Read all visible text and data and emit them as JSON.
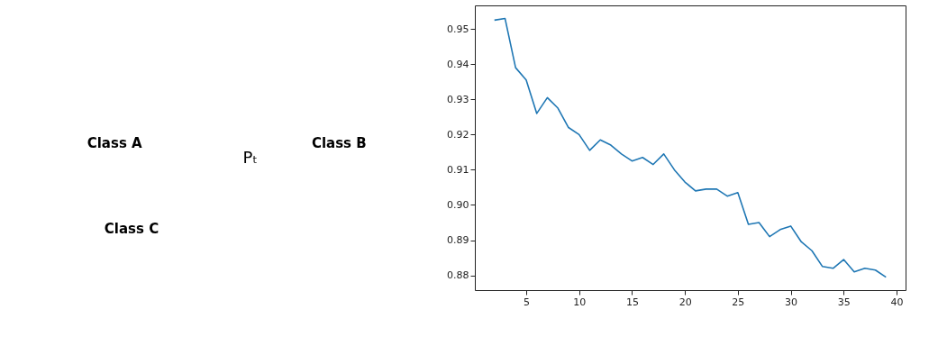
{
  "chart_data": [
    {
      "type": "other",
      "annotations": [
        "Class A",
        "Class B",
        "Class C",
        "Pₜ"
      ]
    },
    {
      "type": "line",
      "x": [
        2,
        3,
        4,
        5,
        6,
        7,
        8,
        9,
        10,
        11,
        12,
        13,
        14,
        15,
        16,
        17,
        18,
        19,
        20,
        21,
        22,
        23,
        24,
        25,
        26,
        27,
        28,
        29,
        30,
        31,
        32,
        33,
        34,
        35,
        36,
        37,
        38,
        39
      ],
      "series": [
        {
          "color": "#1f77b4",
          "values": [
            0.9525,
            0.953,
            0.939,
            0.9355,
            0.926,
            0.9305,
            0.9275,
            0.922,
            0.92,
            0.9155,
            0.9185,
            0.917,
            0.9145,
            0.9125,
            0.9135,
            0.9115,
            0.9145,
            0.91,
            0.9065,
            0.904,
            0.9045,
            0.9045,
            0.9025,
            0.9035,
            0.8945,
            0.895,
            0.891,
            0.893,
            0.894,
            0.8895,
            0.887,
            0.8825,
            0.882,
            0.8845,
            0.881,
            0.882,
            0.8815,
            0.8795
          ]
        }
      ],
      "xlim": [
        0.15,
        40.85
      ],
      "xticks": [
        5,
        10,
        15,
        20,
        25,
        30,
        35,
        40
      ],
      "ylim": [
        0.8758,
        0.9567
      ],
      "yticks": [
        0.88,
        0.89,
        {
          "value": 0.9,
          "label": "0.90"
        },
        0.91,
        0.92,
        0.93,
        0.94,
        0.95
      ],
      "grid": false,
      "legend": false,
      "marker": "none",
      "line_style": "solid"
    }
  ]
}
